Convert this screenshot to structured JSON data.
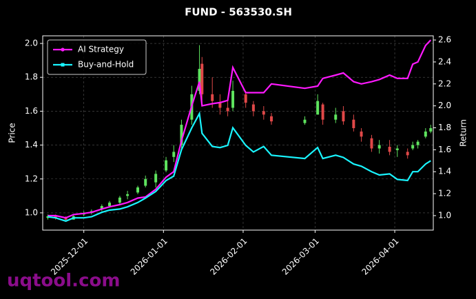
{
  "chart_data": {
    "type": "candlestick",
    "title": "FUND - 563530.SH",
    "ylabel": "Price",
    "y2label": "Return",
    "watermark": "uqtool.com",
    "x": [
      "2025-11-17",
      "2025-11-20",
      "2025-11-24",
      "2025-11-27",
      "2025-12-01",
      "2025-12-04",
      "2025-12-08",
      "2025-12-11",
      "2025-12-15",
      "2025-12-18",
      "2025-12-22",
      "2025-12-25",
      "2025-12-29",
      "2026-01-02",
      "2026-01-05",
      "2026-01-08",
      "2026-01-12",
      "2026-01-15",
      "2026-01-16",
      "2026-01-20",
      "2026-01-23",
      "2026-01-26",
      "2026-01-28",
      "2026-02-02",
      "2026-02-05",
      "2026-02-09",
      "2026-02-12",
      "2026-02-25",
      "2026-03-02",
      "2026-03-04",
      "2026-03-09",
      "2026-03-12",
      "2026-03-16",
      "2026-03-19",
      "2026-03-23",
      "2026-03-26",
      "2026-03-30",
      "2026-04-02",
      "2026-04-06",
      "2026-04-08",
      "2026-04-10",
      "2026-04-13",
      "2026-04-15"
    ],
    "open": [
      0.97,
      0.98,
      0.97,
      0.96,
      0.99,
      1.0,
      1.02,
      1.04,
      1.06,
      1.1,
      1.12,
      1.16,
      1.18,
      1.25,
      1.33,
      1.4,
      1.55,
      1.72,
      1.88,
      1.7,
      1.65,
      1.62,
      1.62,
      1.7,
      1.64,
      1.6,
      1.57,
      1.53,
      1.58,
      1.64,
      1.55,
      1.6,
      1.55,
      1.48,
      1.44,
      1.38,
      1.39,
      1.37,
      1.36,
      1.38,
      1.4,
      1.45,
      1.48
    ],
    "high": [
      0.99,
      0.99,
      0.98,
      0.99,
      1.01,
      1.02,
      1.05,
      1.07,
      1.1,
      1.13,
      1.16,
      1.22,
      1.25,
      1.33,
      1.4,
      1.55,
      1.75,
      1.99,
      1.92,
      1.8,
      1.7,
      1.66,
      1.78,
      1.72,
      1.66,
      1.63,
      1.59,
      1.57,
      1.7,
      1.65,
      1.62,
      1.63,
      1.58,
      1.5,
      1.46,
      1.43,
      1.43,
      1.4,
      1.38,
      1.42,
      1.43,
      1.5,
      1.52
    ],
    "low": [
      0.96,
      0.96,
      0.95,
      0.96,
      0.98,
      0.99,
      1.01,
      1.03,
      1.05,
      1.08,
      1.11,
      1.15,
      1.15,
      1.24,
      1.3,
      1.38,
      1.52,
      1.7,
      1.65,
      1.62,
      1.58,
      1.57,
      1.6,
      1.62,
      1.57,
      1.55,
      1.52,
      1.52,
      1.58,
      1.52,
      1.53,
      1.52,
      1.48,
      1.42,
      1.36,
      1.35,
      1.34,
      1.33,
      1.32,
      1.37,
      1.38,
      1.44,
      1.47
    ],
    "close": [
      0.98,
      0.97,
      0.96,
      0.98,
      1.0,
      1.01,
      1.04,
      1.06,
      1.09,
      1.11,
      1.15,
      1.2,
      1.23,
      1.31,
      1.36,
      1.52,
      1.7,
      1.85,
      1.7,
      1.66,
      1.62,
      1.6,
      1.72,
      1.65,
      1.6,
      1.58,
      1.54,
      1.55,
      1.66,
      1.55,
      1.58,
      1.54,
      1.5,
      1.45,
      1.38,
      1.4,
      1.36,
      1.38,
      1.34,
      1.4,
      1.42,
      1.48,
      1.5
    ],
    "up_color": "#5ee35e",
    "down_color": "#e04848",
    "series": [
      {
        "name": "AI Strategy",
        "color": "#ff19ff",
        "axis": "y2",
        "marker": "circle",
        "values": [
          1.0,
          1.0,
          0.98,
          1.01,
          1.02,
          1.03,
          1.06,
          1.08,
          1.1,
          1.12,
          1.16,
          1.17,
          1.24,
          1.35,
          1.4,
          1.68,
          2.0,
          2.22,
          2.0,
          2.02,
          2.03,
          2.05,
          2.35,
          2.12,
          2.12,
          2.12,
          2.2,
          2.16,
          2.18,
          2.25,
          2.28,
          2.3,
          2.22,
          2.2,
          2.22,
          2.24,
          2.28,
          2.25,
          2.25,
          2.38,
          2.4,
          2.55,
          2.6
        ]
      },
      {
        "name": "Buy-and-Hold",
        "color": "#19f5ff",
        "axis": "y2",
        "marker": "square",
        "values": [
          0.99,
          0.98,
          0.95,
          0.98,
          0.98,
          0.99,
          1.03,
          1.05,
          1.06,
          1.08,
          1.12,
          1.16,
          1.22,
          1.32,
          1.36,
          1.6,
          1.8,
          1.93,
          1.75,
          1.63,
          1.62,
          1.64,
          1.8,
          1.64,
          1.58,
          1.63,
          1.55,
          1.52,
          1.62,
          1.52,
          1.55,
          1.53,
          1.47,
          1.45,
          1.4,
          1.37,
          1.38,
          1.33,
          1.32,
          1.4,
          1.4,
          1.47,
          1.5
        ]
      }
    ],
    "xlim": [
      "2025-11-15",
      "2026-04-16"
    ],
    "xticks": [
      "2025-12-01",
      "2026-01-01",
      "2026-02-01",
      "2026-03-01",
      "2026-04-01"
    ],
    "ylim": [
      0.898,
      2.045
    ],
    "yticks": [
      {
        "value": 1.0,
        "label": "1.0"
      },
      {
        "value": 1.2,
        "label": "1.2"
      },
      {
        "value": 1.4,
        "label": "1.4"
      },
      {
        "value": 1.6,
        "label": "1.6"
      },
      {
        "value": 1.8,
        "label": "1.8"
      },
      {
        "value": 2.0,
        "label": "2.0"
      }
    ],
    "y2lim": [
      0.868,
      2.638
    ],
    "y2ticks": [
      {
        "value": 1.0,
        "label": "1.0"
      },
      {
        "value": 1.2,
        "label": "1.2"
      },
      {
        "value": 1.4,
        "label": "1.4"
      },
      {
        "value": 1.6,
        "label": "1.6"
      },
      {
        "value": 1.8,
        "label": "1.8"
      },
      {
        "value": 2.0,
        "label": "2.0"
      },
      {
        "value": 2.2,
        "label": "2.2"
      },
      {
        "value": 2.4,
        "label": "2.4"
      },
      {
        "value": 2.6,
        "label": "2.6"
      }
    ],
    "grid": true,
    "legend": "upper left"
  }
}
